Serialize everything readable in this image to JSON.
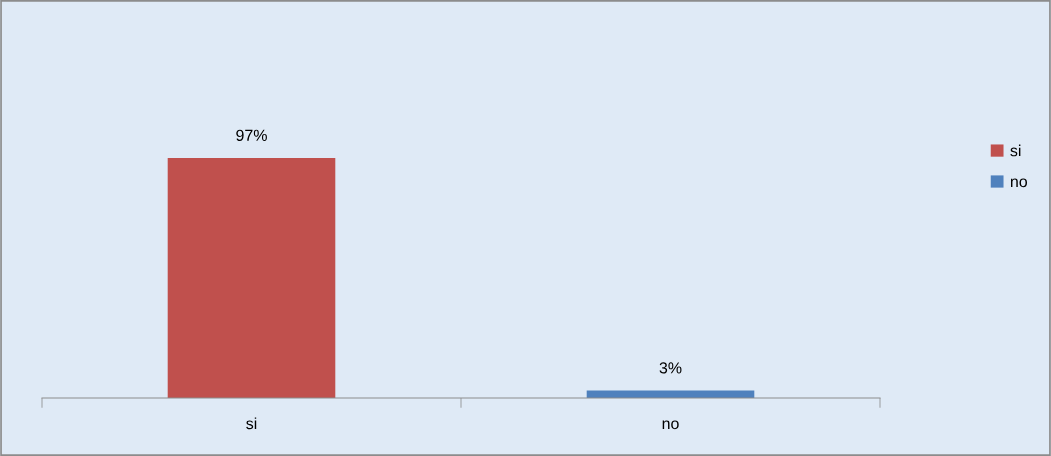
{
  "chart_data": {
    "type": "bar",
    "categories": [
      "si",
      "no"
    ],
    "series": [
      {
        "name": "si",
        "color": "#c0504d",
        "values": [
          97,
          null
        ],
        "value_labels": [
          "97%",
          null
        ]
      },
      {
        "name": "no",
        "color": "#4f81bd",
        "values": [
          null,
          3
        ],
        "value_labels": [
          null,
          "3%"
        ]
      }
    ],
    "legend": "right",
    "grid": false
  }
}
